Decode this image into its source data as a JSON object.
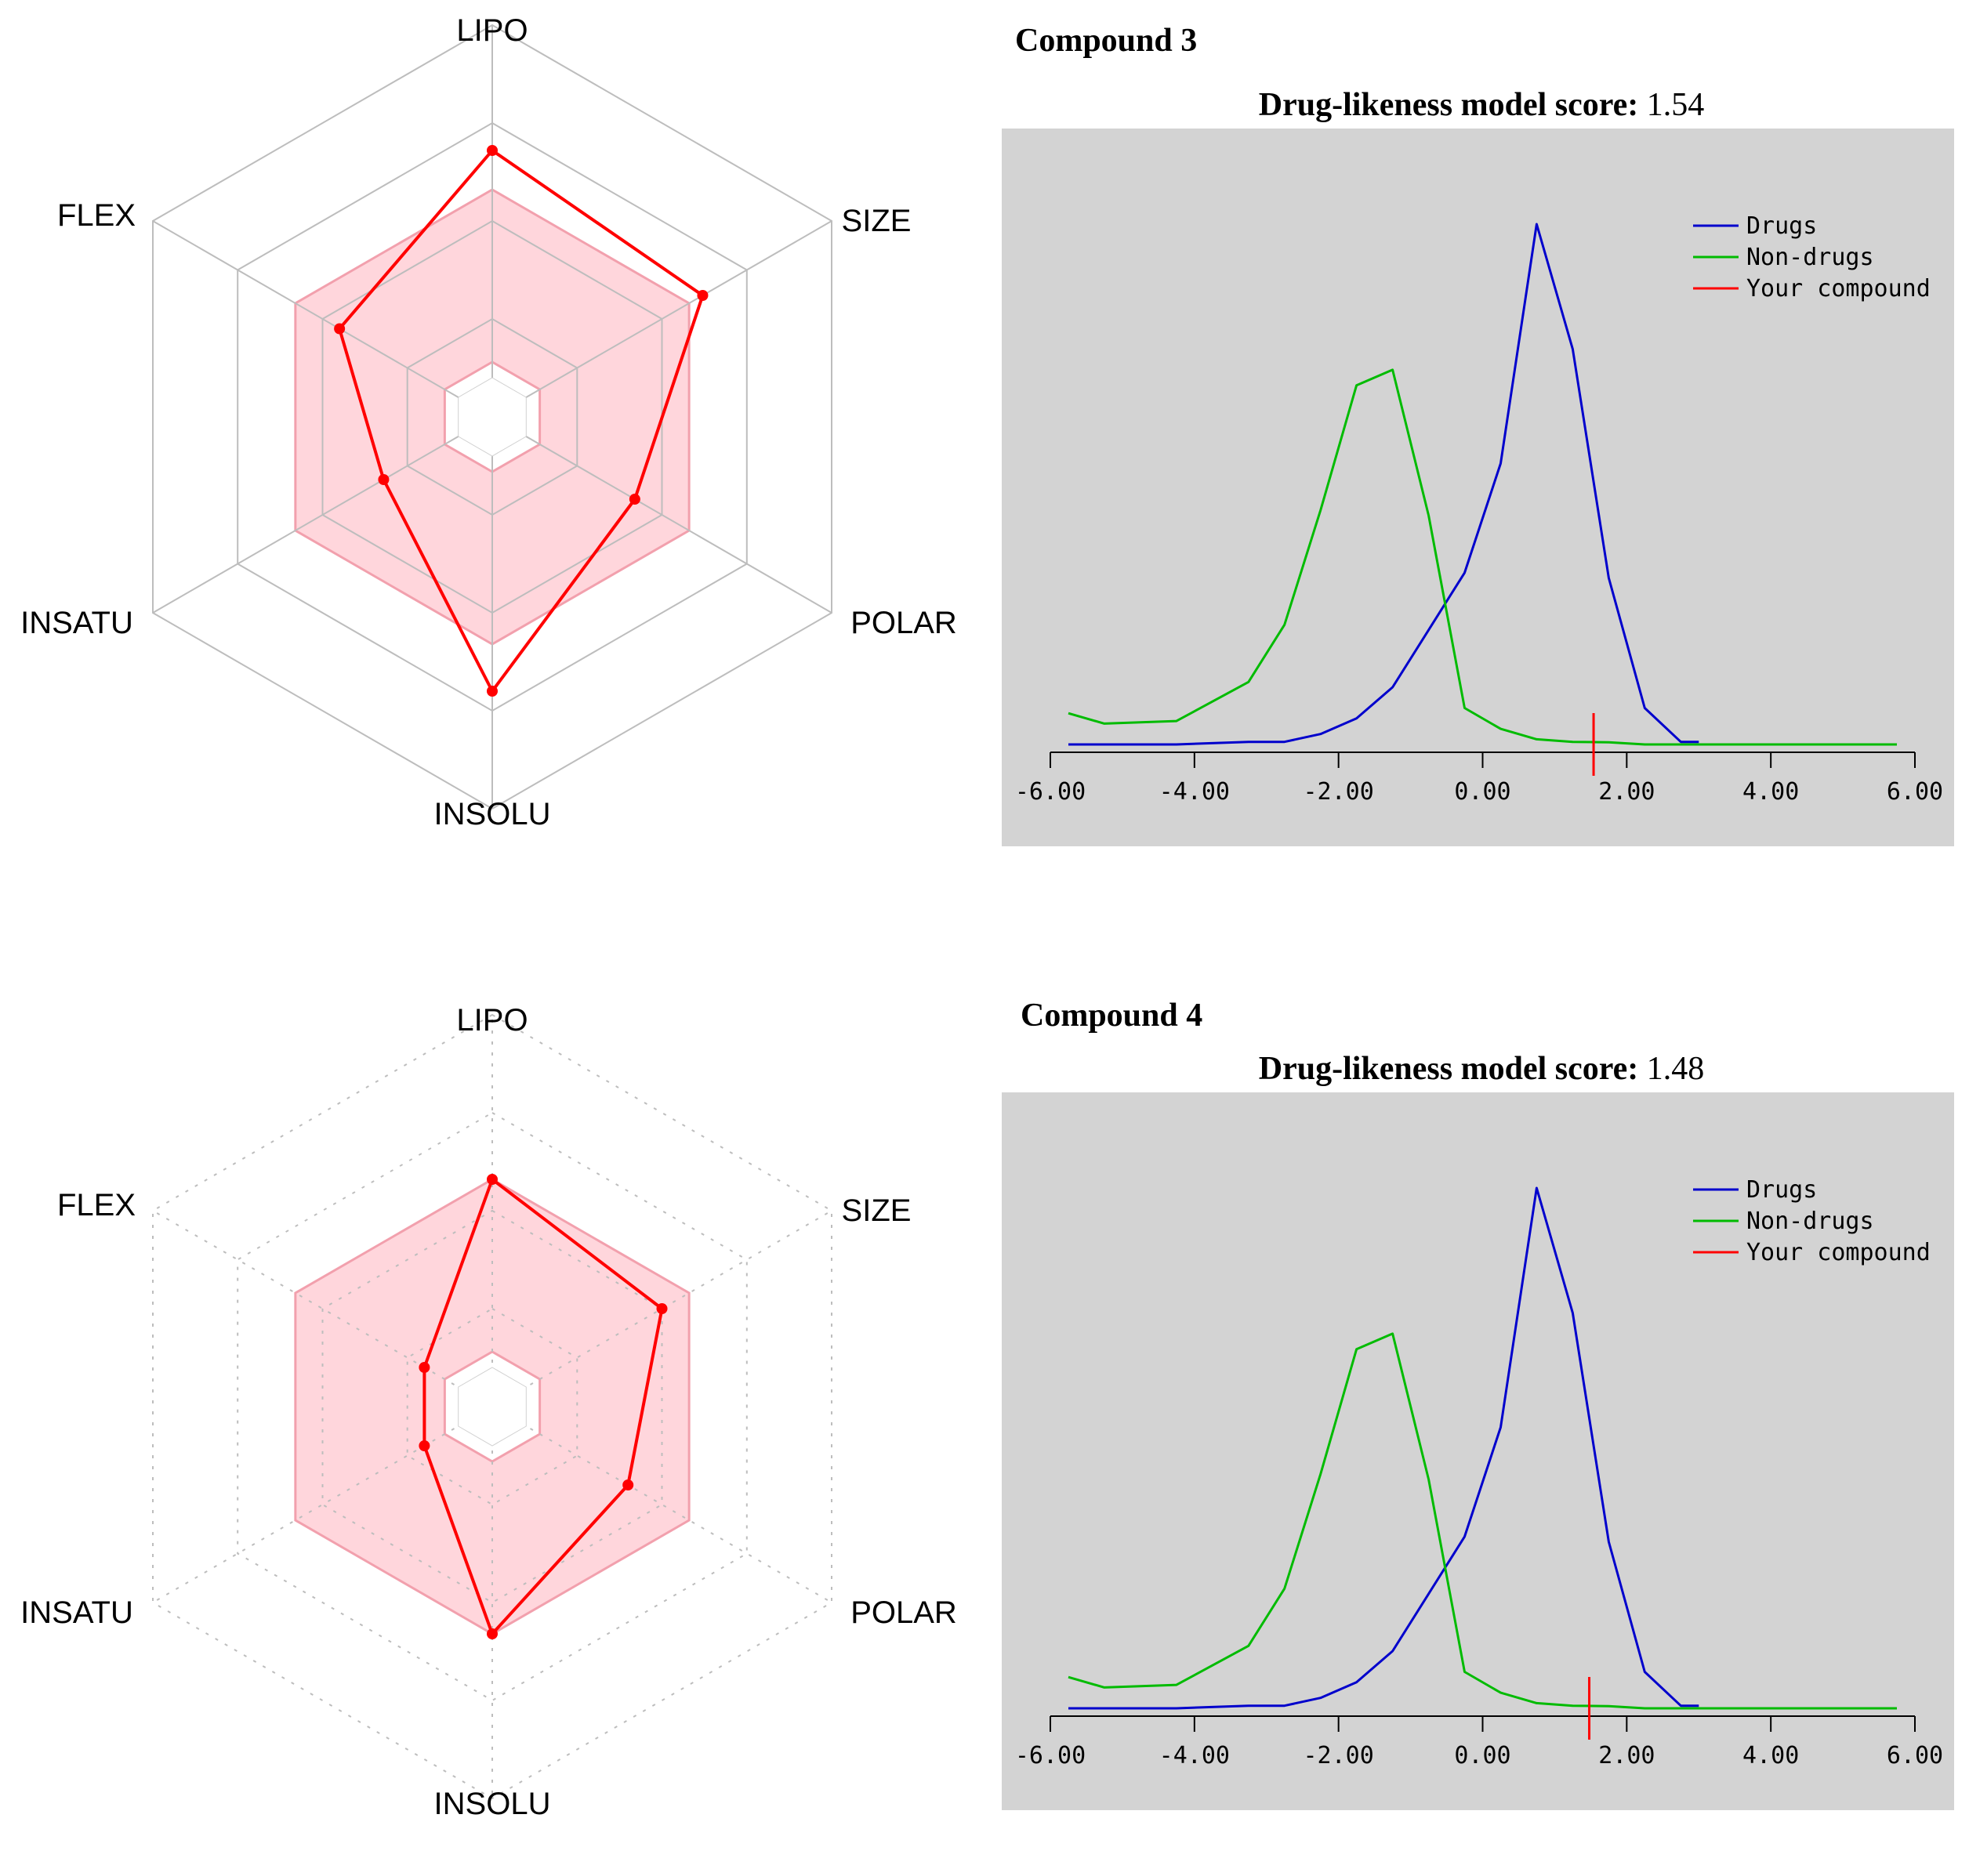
{
  "compounds": [
    {
      "title": "Compound 3",
      "score_label": "Drug-likeness model score:",
      "score_value": "1.54",
      "radar": {
        "axes": [
          "LIPO",
          "SIZE",
          "POLAR",
          "INSOLU",
          "INSATU",
          "FLEX"
        ],
        "values": [
          0.68,
          0.62,
          0.42,
          0.7,
          0.32,
          0.45
        ],
        "optimal_min": [
          0.14,
          0.14,
          0.14,
          0.14,
          0.14,
          0.14
        ],
        "optimal_max": [
          0.58,
          0.58,
          0.58,
          0.58,
          0.58,
          0.58
        ],
        "grid_style": "solid"
      },
      "distribution": {
        "legend": [
          "Drugs",
          "Non-drugs",
          "Your compound"
        ],
        "score": 1.54
      }
    },
    {
      "title": "Compound 4",
      "score_label": "Drug-likeness model score:",
      "score_value": "1.48",
      "radar": {
        "axes": [
          "LIPO",
          "SIZE",
          "POLAR",
          "INSOLU",
          "INSATU",
          "FLEX"
        ],
        "values": [
          0.58,
          0.5,
          0.4,
          0.58,
          0.2,
          0.2
        ],
        "optimal_min": [
          0.14,
          0.14,
          0.14,
          0.14,
          0.14,
          0.14
        ],
        "optimal_max": [
          0.58,
          0.58,
          0.58,
          0.58,
          0.58,
          0.58
        ],
        "grid_style": "dotted"
      },
      "distribution": {
        "legend": [
          "Drugs",
          "Non-drugs",
          "Your compound"
        ],
        "score": 1.48
      }
    }
  ],
  "chart_data": [
    {
      "type": "radar",
      "title": "",
      "axes": [
        "LIPO",
        "SIZE",
        "POLAR",
        "INSOLU",
        "INSATU",
        "FLEX"
      ],
      "series": [
        {
          "name": "",
          "values": [
            0.68,
            0.62,
            0.42,
            0.7,
            0.32,
            0.45
          ]
        }
      ],
      "range": [
        0,
        1
      ]
    },
    {
      "type": "line",
      "title": "Drug-likeness model score: 1.54",
      "xlim": [
        -6,
        6
      ],
      "xticks": [
        "-6.00",
        "-4.00",
        "-2.00",
        "0.00",
        "2.00",
        "4.00",
        "6.00"
      ],
      "ylim": [
        0,
        1
      ],
      "legend_position": "top-right",
      "series": [
        {
          "name": "Drugs",
          "color": "#0000cc",
          "x": [
            -5.75,
            -4.25,
            -3.25,
            -2.75,
            -2.25,
            -1.75,
            -1.25,
            -0.75,
            -0.25,
            0.25,
            0.75,
            1.25,
            1.75,
            2.25,
            2.75,
            3.0
          ],
          "y": [
            0.0,
            0.0,
            0.005,
            0.005,
            0.02,
            0.05,
            0.11,
            0.22,
            0.33,
            0.54,
            1.0,
            0.76,
            0.32,
            0.07,
            0.005,
            0.005
          ]
        },
        {
          "name": "Non-drugs",
          "color": "#00bb00",
          "x": [
            -5.75,
            -5.25,
            -4.25,
            -3.25,
            -2.75,
            -2.25,
            -1.75,
            -1.25,
            -0.75,
            -0.25,
            0.25,
            0.75,
            1.25,
            1.75,
            2.25,
            2.75,
            3.25,
            3.75,
            4.25,
            4.75,
            5.25,
            5.75
          ],
          "y": [
            0.06,
            0.04,
            0.045,
            0.12,
            0.23,
            0.45,
            0.69,
            0.72,
            0.44,
            0.07,
            0.03,
            0.01,
            0.005,
            0.004,
            0.0,
            0.0,
            0.0,
            0.0,
            0.0,
            0.0,
            0.0,
            0.0
          ]
        },
        {
          "name": "Your compound",
          "color": "#ff0000",
          "x": [
            1.54
          ],
          "y": [
            0.0
          ]
        }
      ]
    },
    {
      "type": "radar",
      "title": "",
      "axes": [
        "LIPO",
        "SIZE",
        "POLAR",
        "INSOLU",
        "INSATU",
        "FLEX"
      ],
      "series": [
        {
          "name": "",
          "values": [
            0.58,
            0.5,
            0.4,
            0.58,
            0.2,
            0.2
          ]
        }
      ],
      "range": [
        0,
        1
      ]
    },
    {
      "type": "line",
      "title": "Drug-likeness model score: 1.48",
      "xlim": [
        -6,
        6
      ],
      "xticks": [
        "-6.00",
        "-4.00",
        "-2.00",
        "0.00",
        "2.00",
        "4.00",
        "6.00"
      ],
      "ylim": [
        0,
        1
      ],
      "legend_position": "top-right",
      "series": [
        {
          "name": "Drugs",
          "color": "#0000cc",
          "x": [
            -5.75,
            -4.25,
            -3.25,
            -2.75,
            -2.25,
            -1.75,
            -1.25,
            -0.75,
            -0.25,
            0.25,
            0.75,
            1.25,
            1.75,
            2.25,
            2.75,
            3.0
          ],
          "y": [
            0.0,
            0.0,
            0.005,
            0.005,
            0.02,
            0.05,
            0.11,
            0.22,
            0.33,
            0.54,
            1.0,
            0.76,
            0.32,
            0.07,
            0.005,
            0.005
          ]
        },
        {
          "name": "Non-drugs",
          "color": "#00bb00",
          "x": [
            -5.75,
            -5.25,
            -4.25,
            -3.25,
            -2.75,
            -2.25,
            -1.75,
            -1.25,
            -0.75,
            -0.25,
            0.25,
            0.75,
            1.25,
            1.75,
            2.25,
            2.75,
            3.25,
            3.75,
            4.25,
            4.75,
            5.25,
            5.75
          ],
          "y": [
            0.06,
            0.04,
            0.045,
            0.12,
            0.23,
            0.45,
            0.69,
            0.72,
            0.44,
            0.07,
            0.03,
            0.01,
            0.005,
            0.004,
            0.0,
            0.0,
            0.0,
            0.0,
            0.0,
            0.0,
            0.0,
            0.0
          ]
        },
        {
          "name": "Your compound",
          "color": "#ff0000",
          "x": [
            1.48
          ],
          "y": [
            0.0
          ]
        }
      ]
    }
  ]
}
